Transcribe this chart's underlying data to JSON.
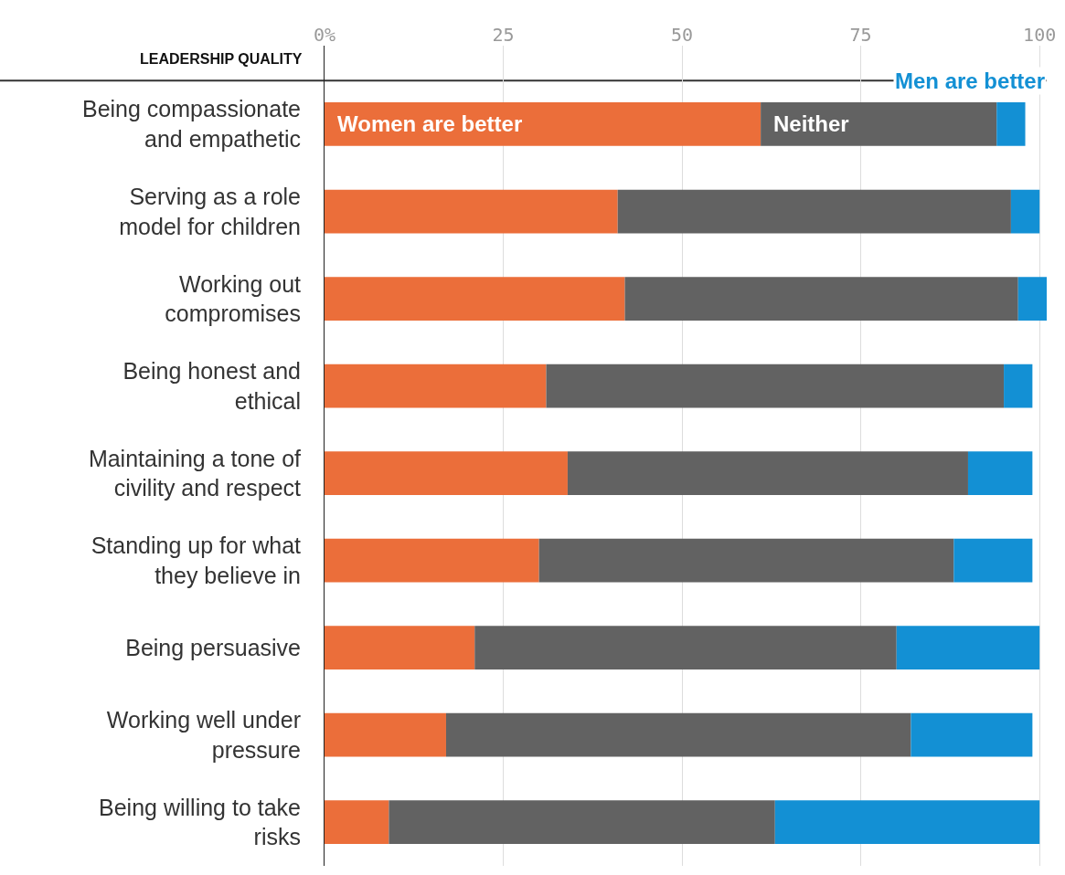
{
  "chart_data": {
    "type": "bar",
    "orientation": "horizontal",
    "stacked": true,
    "ylabel": "LEADERSHIP QUALITY",
    "categories": [
      "Being compassionate and empathetic",
      "Serving as a role model for children",
      "Working out compromises",
      "Being honest and ethical",
      "Maintaining a tone of civility and respect",
      "Standing up for what they believe in",
      "Being persuasive",
      "Working well under pressure",
      "Being willing to take risks"
    ],
    "series": [
      {
        "name": "Women are better",
        "color": "#eb6e3a",
        "values": [
          61,
          41,
          42,
          31,
          34,
          30,
          21,
          17,
          9
        ]
      },
      {
        "name": "Neither",
        "color": "#626262",
        "values": [
          33,
          55,
          55,
          64,
          56,
          58,
          59,
          65,
          54
        ]
      },
      {
        "name": "Men are better",
        "color": "#1390d4",
        "values": [
          4,
          4,
          4,
          4,
          9,
          11,
          20,
          17,
          37
        ]
      }
    ],
    "xlim": [
      0,
      101
    ],
    "xticks": [
      {
        "value": 0,
        "label": "0%"
      },
      25,
      50,
      75,
      100
    ],
    "grid": "x",
    "legend": false
  }
}
